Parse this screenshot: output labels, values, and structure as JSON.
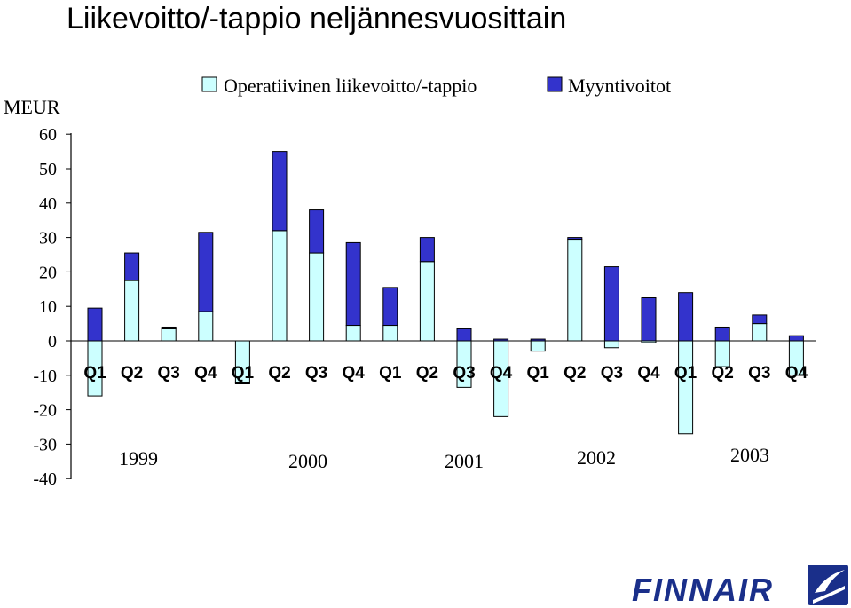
{
  "colors": {
    "operating": "#ccffff",
    "sales_gains": "#3333cc",
    "logo": "#1a2f8a"
  },
  "logo": {
    "text": "FINNAIR",
    "icon": "finnair-f-logo-icon"
  },
  "chart_data": {
    "type": "bar",
    "stacked": true,
    "title": "Liikevoitto/-tappio neljännesvuosittain",
    "ylabel": "MEUR",
    "ylim": [
      -40,
      60
    ],
    "yticks": [
      60,
      50,
      40,
      30,
      20,
      10,
      0,
      -10,
      -20,
      -30,
      -40
    ],
    "grid": false,
    "legend_position": "top",
    "categories": [
      "Q1",
      "Q2",
      "Q3",
      "Q4",
      "Q1",
      "Q2",
      "Q3",
      "Q4",
      "Q1",
      "Q2",
      "Q3",
      "Q4",
      "Q1",
      "Q2",
      "Q3",
      "Q4",
      "Q1",
      "Q2",
      "Q3",
      "Q4"
    ],
    "years": [
      "1999",
      "2000",
      "2001",
      "2002",
      "2003"
    ],
    "series": [
      {
        "name": "Operatiivinen liikevoitto/-tappio",
        "color": "#ccffff",
        "values": [
          -16,
          17.5,
          3.5,
          8.5,
          -12,
          32,
          25.5,
          4.5,
          4.5,
          23,
          -13.5,
          -22,
          -3,
          29.5,
          -2,
          -0.5,
          -27,
          -7.5,
          5,
          -10
        ]
      },
      {
        "name": "Myyntivoitot",
        "color": "#3333cc",
        "values": [
          9.5,
          8,
          0.5,
          23,
          -0.5,
          23,
          12.5,
          24,
          11,
          7,
          3.5,
          0.5,
          0.5,
          0.5,
          21.5,
          12.5,
          14,
          4,
          2.5,
          1.5
        ]
      }
    ]
  }
}
